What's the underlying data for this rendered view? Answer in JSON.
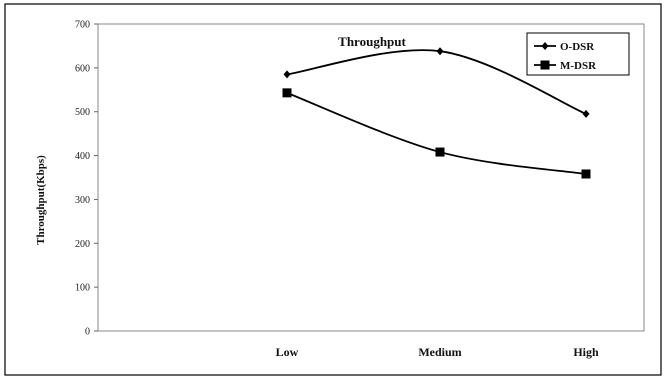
{
  "chart_data": {
    "type": "line",
    "title": "Throughput",
    "xlabel": "",
    "ylabel": "Throughput(Kbps)",
    "categories": [
      "Low",
      "Medium",
      "High"
    ],
    "ylim": [
      0,
      700
    ],
    "yticks": [
      0,
      100,
      200,
      300,
      400,
      500,
      600,
      700
    ],
    "grid": false,
    "legend_position": "top-right",
    "series": [
      {
        "name": "O-DSR",
        "values": [
          585,
          638,
          495
        ],
        "marker": "diamond",
        "color": "#000000"
      },
      {
        "name": "M-DSR",
        "values": [
          543,
          408,
          358
        ],
        "marker": "square",
        "color": "#000000"
      }
    ]
  }
}
